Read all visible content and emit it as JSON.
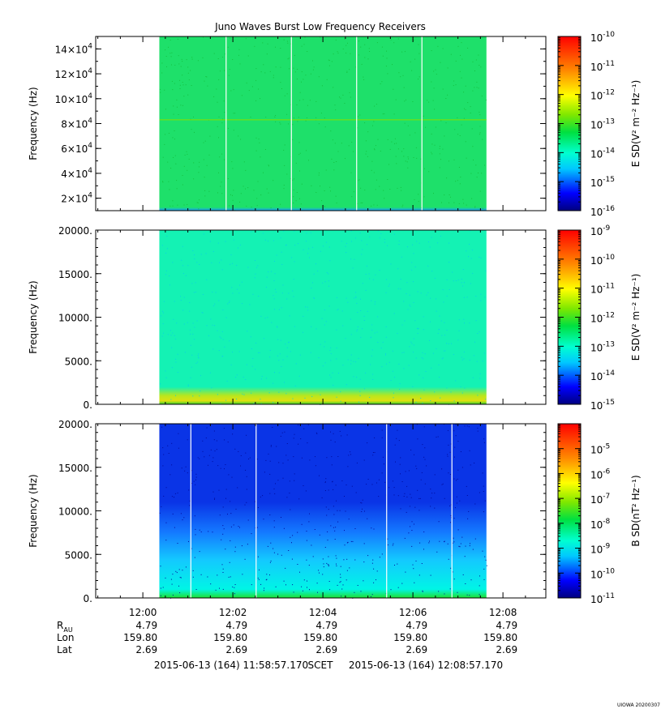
{
  "title": "Juno Waves Burst Low Frequency Receivers",
  "chart_data": [
    {
      "type": "heatmap",
      "ylabel": "Frequency (Hz)",
      "ylim": [
        10000,
        150000
      ],
      "yticks": [
        {
          "value": 20000,
          "mant": "2×10",
          "exp": "4"
        },
        {
          "value": 40000,
          "mant": "4×10",
          "exp": "4"
        },
        {
          "value": 60000,
          "mant": "6×10",
          "exp": "4"
        },
        {
          "value": 80000,
          "mant": "8×10",
          "exp": "4"
        },
        {
          "value": 100000,
          "mant": "10×10",
          "exp": "4"
        },
        {
          "value": 120000,
          "mant": "12×10",
          "exp": "4"
        },
        {
          "value": 140000,
          "mant": "14×10",
          "exp": "4"
        }
      ],
      "data_start": "12:00:22",
      "data_end": "12:07:38",
      "base_color": "#1ee06a",
      "bottom_color": "#1b9cff",
      "data_gaps": [
        "12:01:51",
        "12:03:18",
        "12:04:45",
        "12:06:12"
      ],
      "spectral_line_hz": 83000,
      "colorbar": {
        "label": "E SD(V² m⁻² Hz⁻¹)",
        "scale": "log",
        "range": [
          1e-16,
          1e-10
        ],
        "tick_exponents": [
          "-10",
          "-11",
          "-12",
          "-13",
          "-14",
          "-15",
          "-16"
        ]
      }
    },
    {
      "type": "heatmap",
      "ylabel": "Frequency (Hz)",
      "ylim": [
        0,
        20000
      ],
      "yticks": [
        {
          "value": 0,
          "label": "0."
        },
        {
          "value": 5000,
          "label": "5000."
        },
        {
          "value": 10000,
          "label": "10000."
        },
        {
          "value": 15000,
          "label": "15000."
        },
        {
          "value": 20000,
          "label": "20000."
        }
      ],
      "data_start": "12:00:22",
      "data_end": "12:07:38",
      "base_color": "#14f2b4",
      "bottom_color": "#b8e61e",
      "data_gaps": [],
      "colorbar": {
        "label": "E SD(V² m⁻² Hz⁻¹)",
        "scale": "log",
        "range": [
          1e-15,
          1e-09
        ],
        "tick_exponents": [
          "-9",
          "-10",
          "-11",
          "-12",
          "-13",
          "-14",
          "-15"
        ]
      }
    },
    {
      "type": "heatmap",
      "ylabel": "Frequency (Hz)",
      "ylim": [
        0,
        20000
      ],
      "yticks": [
        {
          "value": 0,
          "label": "0."
        },
        {
          "value": 5000,
          "label": "5000."
        },
        {
          "value": 10000,
          "label": "10000."
        },
        {
          "value": 15000,
          "label": "15000."
        },
        {
          "value": 20000,
          "label": "20000."
        }
      ],
      "data_start": "12:00:22",
      "data_end": "12:07:38",
      "base_color": "#0a34e6",
      "bottom_color": "#00f5e6",
      "data_gaps": [
        "12:01:04",
        "12:02:31",
        "12:05:25",
        "12:06:52"
      ],
      "colorbar": {
        "label": "B SD(nT² Hz⁻¹)",
        "scale": "log",
        "range": [
          1e-11,
          0.0001
        ],
        "tick_exponents": [
          "-5",
          "-6",
          "-7",
          "-8",
          "-9",
          "-10",
          "-11"
        ]
      }
    }
  ],
  "x_axis": {
    "range": [
      "11:58:57.170",
      "12:08:57.170"
    ],
    "major_ticks": [
      "12:00",
      "12:02",
      "12:04",
      "12:06",
      "12:08"
    ]
  },
  "ephemeris": [
    {
      "name": "R",
      "sub": "AU",
      "values": [
        "4.79",
        "4.79",
        "4.79",
        "4.79",
        "4.79"
      ]
    },
    {
      "name": "Lon",
      "sub": "",
      "values": [
        "159.80",
        "159.80",
        "159.80",
        "159.80",
        "159.80"
      ]
    },
    {
      "name": "Lat",
      "sub": "",
      "values": [
        "2.69",
        "2.69",
        "2.69",
        "2.69",
        "2.69"
      ]
    }
  ],
  "time_range": {
    "start": "2015-06-13 (164) 11:58:57.170",
    "label": "SCET",
    "end": "2015-06-13 (164) 12:08:57.170"
  },
  "footer": "UIOWA 20200307"
}
